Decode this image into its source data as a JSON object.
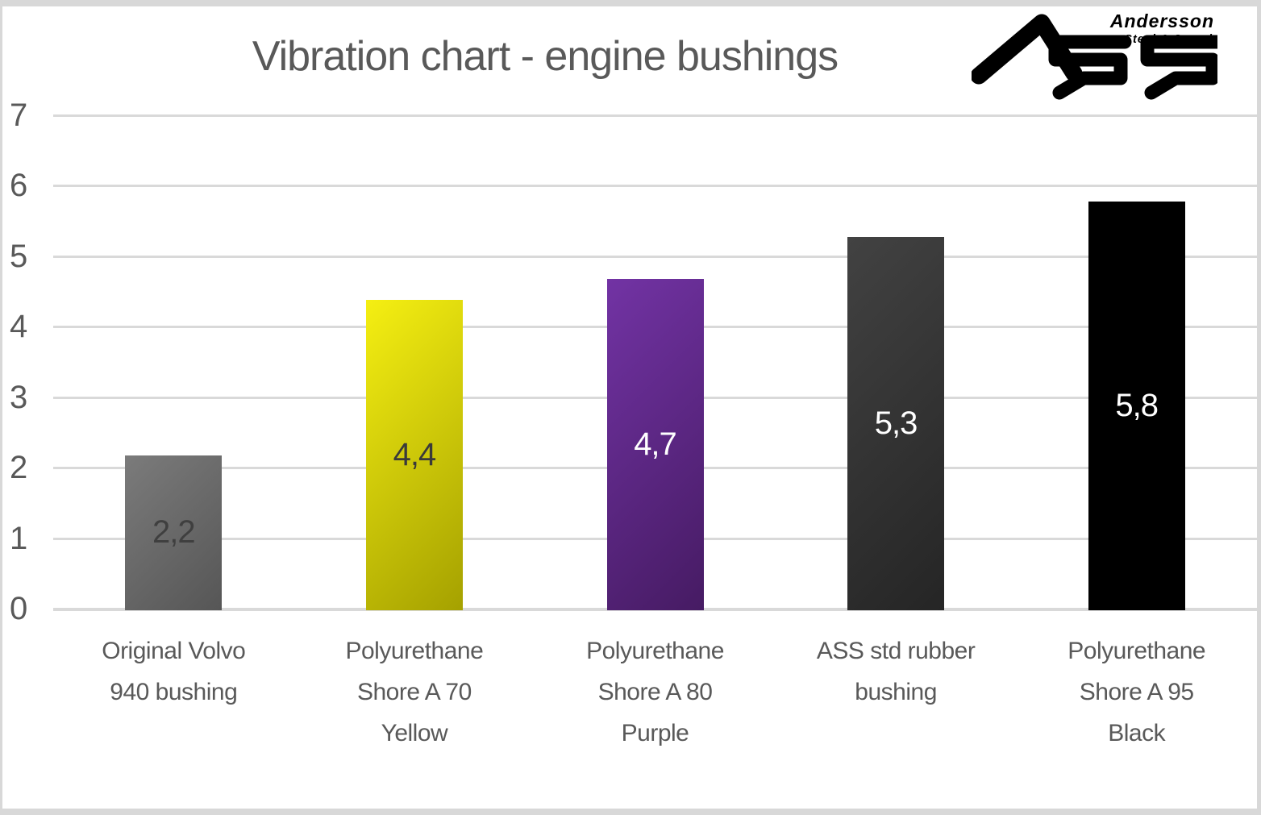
{
  "title": "Vibration chart - engine bushings",
  "logo": {
    "line1": "Andersson",
    "line2": "Steel & Speed",
    "mark": "A55"
  },
  "axis": {
    "tick_color": "#595959",
    "grid_color": "#d9d9d9",
    "label_color": "#595959"
  },
  "chart_data": {
    "type": "bar",
    "title": "Vibration chart - engine bushings",
    "categories": [
      "Original Volvo 940 bushing",
      "Polyurethane Shore A 70 Yellow",
      "Polyurethane Shore A 80 Purple",
      "ASS std rubber bushing",
      "Polyurethane Shore A 95 Black"
    ],
    "category_lines": [
      [
        "Original Volvo",
        "940 bushing"
      ],
      [
        "Polyurethane",
        "Shore A 70",
        "Yellow"
      ],
      [
        "Polyurethane",
        "Shore A 80",
        "Purple"
      ],
      [
        "ASS std rubber",
        "bushing"
      ],
      [
        "Polyurethane",
        "Shore A 95",
        "Black"
      ]
    ],
    "values": [
      2.2,
      4.4,
      4.7,
      5.3,
      5.8
    ],
    "value_labels": [
      "2,2",
      "4,4",
      "4,7",
      "5,3",
      "5,8"
    ],
    "xlabel": "",
    "ylabel": "",
    "ylim": [
      0,
      7
    ],
    "yticks": [
      0,
      1,
      2,
      3,
      4,
      5,
      6,
      7
    ],
    "grid": "horizontal",
    "legend_position": "none",
    "bar_styles": [
      {
        "color_from": "#7b7b7b",
        "color_to": "#565656",
        "label_color": "#3f3f3f"
      },
      {
        "color_from": "#f5ef12",
        "color_to": "#a5a100",
        "label_color": "#3a3a3a"
      },
      {
        "color_from": "#7233a4",
        "color_to": "#461b63",
        "label_color": "#ffffff"
      },
      {
        "color_from": "#424242",
        "color_to": "#252525",
        "label_color": "#ffffff"
      },
      {
        "color_from": "#000000",
        "color_to": "#000000",
        "label_color": "#ffffff"
      }
    ]
  }
}
